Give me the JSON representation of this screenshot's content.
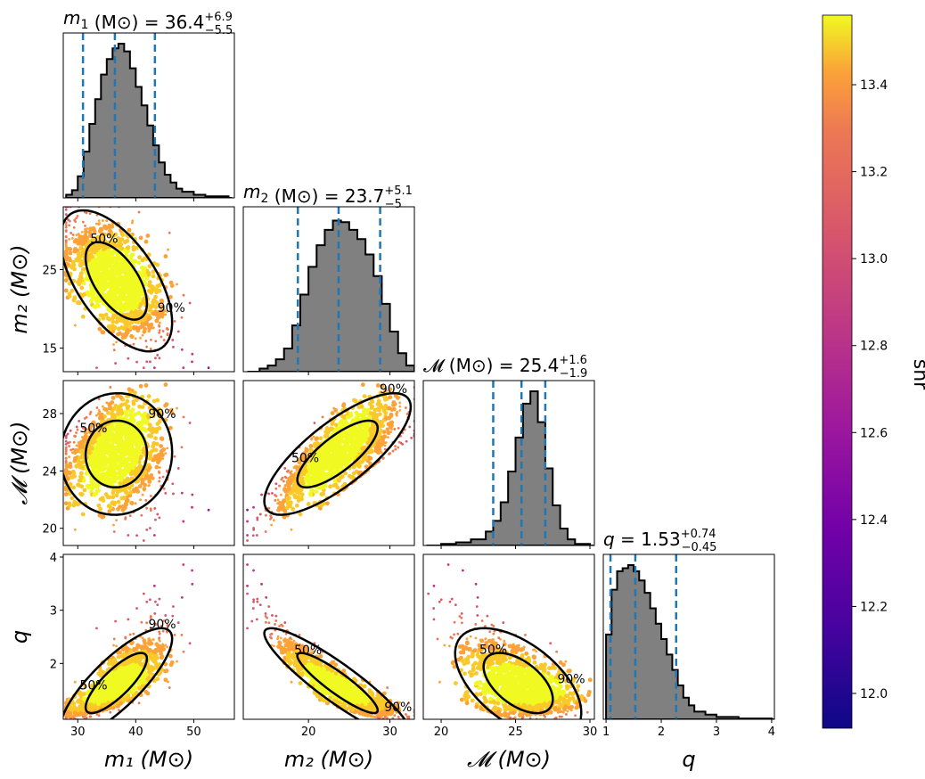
{
  "chart_data": {
    "type": "scatter",
    "subtype": "corner-plot",
    "parameters": [
      {
        "key": "m1",
        "symbol": "m",
        "sub": "1",
        "italic": true,
        "unit": "(M⊙)",
        "median": 36.4,
        "plus": "6.9",
        "minus": "5.5",
        "median_text": "36.4",
        "quantiles": [
          30.9,
          36.4,
          43.3
        ],
        "range": [
          27.5,
          57
        ],
        "ticks": [
          30,
          40,
          50
        ]
      },
      {
        "key": "m2",
        "symbol": "m",
        "sub": "2",
        "italic": true,
        "unit": "(M⊙)",
        "median": 23.7,
        "plus": "5.1",
        "minus": "5",
        "median_text": "23.7",
        "quantiles": [
          18.7,
          23.7,
          28.8
        ],
        "range": [
          12,
          33
        ],
        "ticks": [
          20,
          30
        ],
        "yticks": [
          15,
          25
        ]
      },
      {
        "key": "mc",
        "symbol": "𝓜",
        "sub": "",
        "italic": false,
        "unit": "(M⊙)",
        "median": 25.4,
        "plus": "1.6",
        "minus": "1.9",
        "median_text": "25.4",
        "quantiles": [
          23.5,
          25.4,
          27.0
        ],
        "range": [
          18.8,
          30.3
        ],
        "ticks": [
          20,
          25,
          30
        ],
        "yticks": [
          20,
          24,
          28
        ]
      },
      {
        "key": "q",
        "symbol": "q",
        "sub": "",
        "italic": true,
        "unit": "",
        "median": 1.53,
        "plus": "0.74",
        "minus": "0.45",
        "median_text": "1.53",
        "quantiles": [
          1.08,
          1.53,
          2.27
        ],
        "range": [
          0.95,
          4.05
        ],
        "ticks": [
          1,
          2,
          3,
          4
        ],
        "yticks": [
          2,
          3,
          4
        ]
      }
    ],
    "axis_labels": {
      "m1": "m₁ (M⊙)",
      "m2": "m₂ (M⊙)",
      "mc": "𝓜 (M⊙)",
      "q": "q"
    },
    "histograms": {
      "m1": [
        [
          28,
          0.02
        ],
        [
          29,
          0.05
        ],
        [
          30,
          0.14
        ],
        [
          31,
          0.3
        ],
        [
          32,
          0.48
        ],
        [
          33,
          0.64
        ],
        [
          34,
          0.8
        ],
        [
          35,
          0.9
        ],
        [
          36,
          0.97
        ],
        [
          37,
          1.0
        ],
        [
          38,
          0.95
        ],
        [
          39,
          0.84
        ],
        [
          40,
          0.72
        ],
        [
          41,
          0.6
        ],
        [
          42,
          0.47
        ],
        [
          43,
          0.34
        ],
        [
          44,
          0.23
        ],
        [
          45,
          0.15
        ],
        [
          46,
          0.1
        ],
        [
          47,
          0.06
        ],
        [
          48,
          0.04
        ],
        [
          50,
          0.02
        ],
        [
          52,
          0.01
        ],
        [
          56,
          0.0
        ]
      ],
      "m2": [
        [
          12.5,
          0.0
        ],
        [
          14,
          0.02
        ],
        [
          15,
          0.04
        ],
        [
          16,
          0.08
        ],
        [
          17,
          0.15
        ],
        [
          18,
          0.3
        ],
        [
          19,
          0.5
        ],
        [
          20,
          0.68
        ],
        [
          21,
          0.82
        ],
        [
          22,
          0.92
        ],
        [
          23,
          0.98
        ],
        [
          24,
          0.97
        ],
        [
          25,
          0.92
        ],
        [
          26,
          0.86
        ],
        [
          27,
          0.76
        ],
        [
          28,
          0.62
        ],
        [
          29,
          0.44
        ],
        [
          30,
          0.26
        ],
        [
          31,
          0.12
        ],
        [
          32,
          0.04
        ],
        [
          33,
          0.01
        ]
      ],
      "mc": [
        [
          19,
          0.0
        ],
        [
          20,
          0.01
        ],
        [
          21,
          0.02
        ],
        [
          22,
          0.04
        ],
        [
          23,
          0.09
        ],
        [
          23.5,
          0.16
        ],
        [
          24,
          0.28
        ],
        [
          24.5,
          0.48
        ],
        [
          25,
          0.7
        ],
        [
          25.5,
          0.92
        ],
        [
          26,
          1.0
        ],
        [
          26.5,
          0.8
        ],
        [
          27,
          0.5
        ],
        [
          27.5,
          0.26
        ],
        [
          28,
          0.11
        ],
        [
          28.5,
          0.04
        ],
        [
          29,
          0.01
        ],
        [
          30,
          0.0
        ]
      ],
      "q": [
        [
          1.0,
          0.55
        ],
        [
          1.1,
          0.84
        ],
        [
          1.2,
          0.96
        ],
        [
          1.3,
          0.98
        ],
        [
          1.4,
          1.0
        ],
        [
          1.5,
          0.96
        ],
        [
          1.6,
          0.9
        ],
        [
          1.7,
          0.82
        ],
        [
          1.8,
          0.72
        ],
        [
          1.9,
          0.62
        ],
        [
          2.0,
          0.52
        ],
        [
          2.1,
          0.42
        ],
        [
          2.2,
          0.32
        ],
        [
          2.3,
          0.22
        ],
        [
          2.4,
          0.14
        ],
        [
          2.5,
          0.09
        ],
        [
          2.6,
          0.05
        ],
        [
          2.8,
          0.03
        ],
        [
          3.0,
          0.015
        ],
        [
          3.4,
          0.005
        ],
        [
          4.0,
          0.0
        ]
      ]
    },
    "contour_labels": [
      "50%",
      "90%"
    ],
    "colorbar": {
      "label": "snr",
      "range": [
        11.92,
        13.56
      ],
      "ticks": [
        "12.0",
        "12.2",
        "12.4",
        "12.6",
        "12.8",
        "13.0",
        "13.2",
        "13.4"
      ],
      "colormap": "plasma"
    },
    "colors": {
      "hist_fill": "#808080",
      "quantile_line": "#1f77b4",
      "contour": "#000000"
    }
  }
}
